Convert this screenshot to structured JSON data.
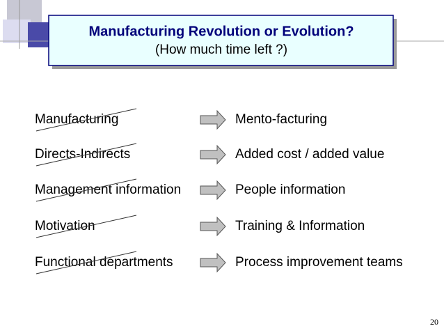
{
  "slide": {
    "title": "Manufacturing Revolution or Evolution?",
    "subtitle": "(How much time left ?)",
    "rows": [
      {
        "from": "Manufacturing",
        "to": "Mento-facturing"
      },
      {
        "from": "Directs-Indirects",
        "to": "Added cost / added value"
      },
      {
        "from": "Management information",
        "to": "People information"
      },
      {
        "from": "Motivation",
        "to": "Training & Information"
      },
      {
        "from": "Functional departments",
        "to": "Process improvement teams"
      }
    ],
    "page_number": "20"
  }
}
